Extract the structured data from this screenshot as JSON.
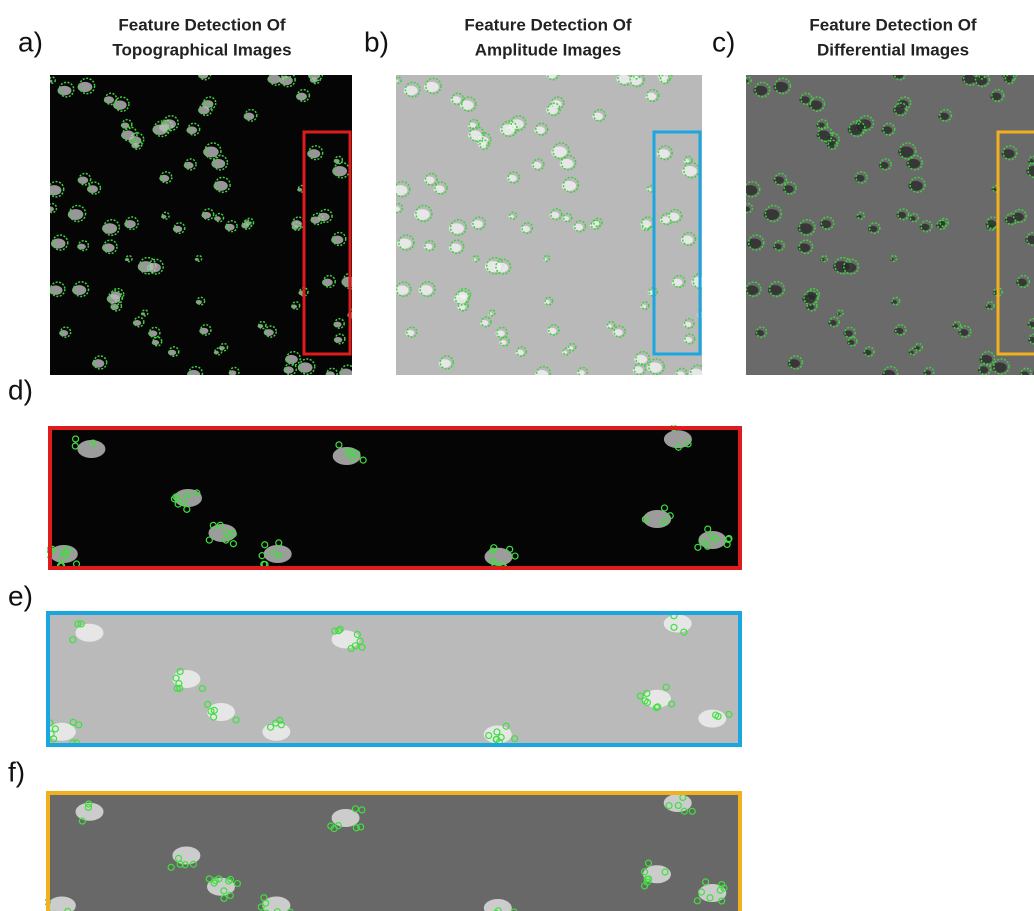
{
  "panels": [
    {
      "label": "a)",
      "title_lines": [
        "Feature Detection Of",
        "Topographical  Images"
      ]
    },
    {
      "label": "b)",
      "title_lines": [
        "Feature Detection Of",
        "Amplitude  Images"
      ]
    },
    {
      "label": "c)",
      "title_lines": [
        "Feature Detection Of",
        "Differential  Images"
      ]
    }
  ],
  "strips": [
    {
      "label": "d)"
    },
    {
      "label": "e)"
    },
    {
      "label": "f)"
    }
  ]
}
